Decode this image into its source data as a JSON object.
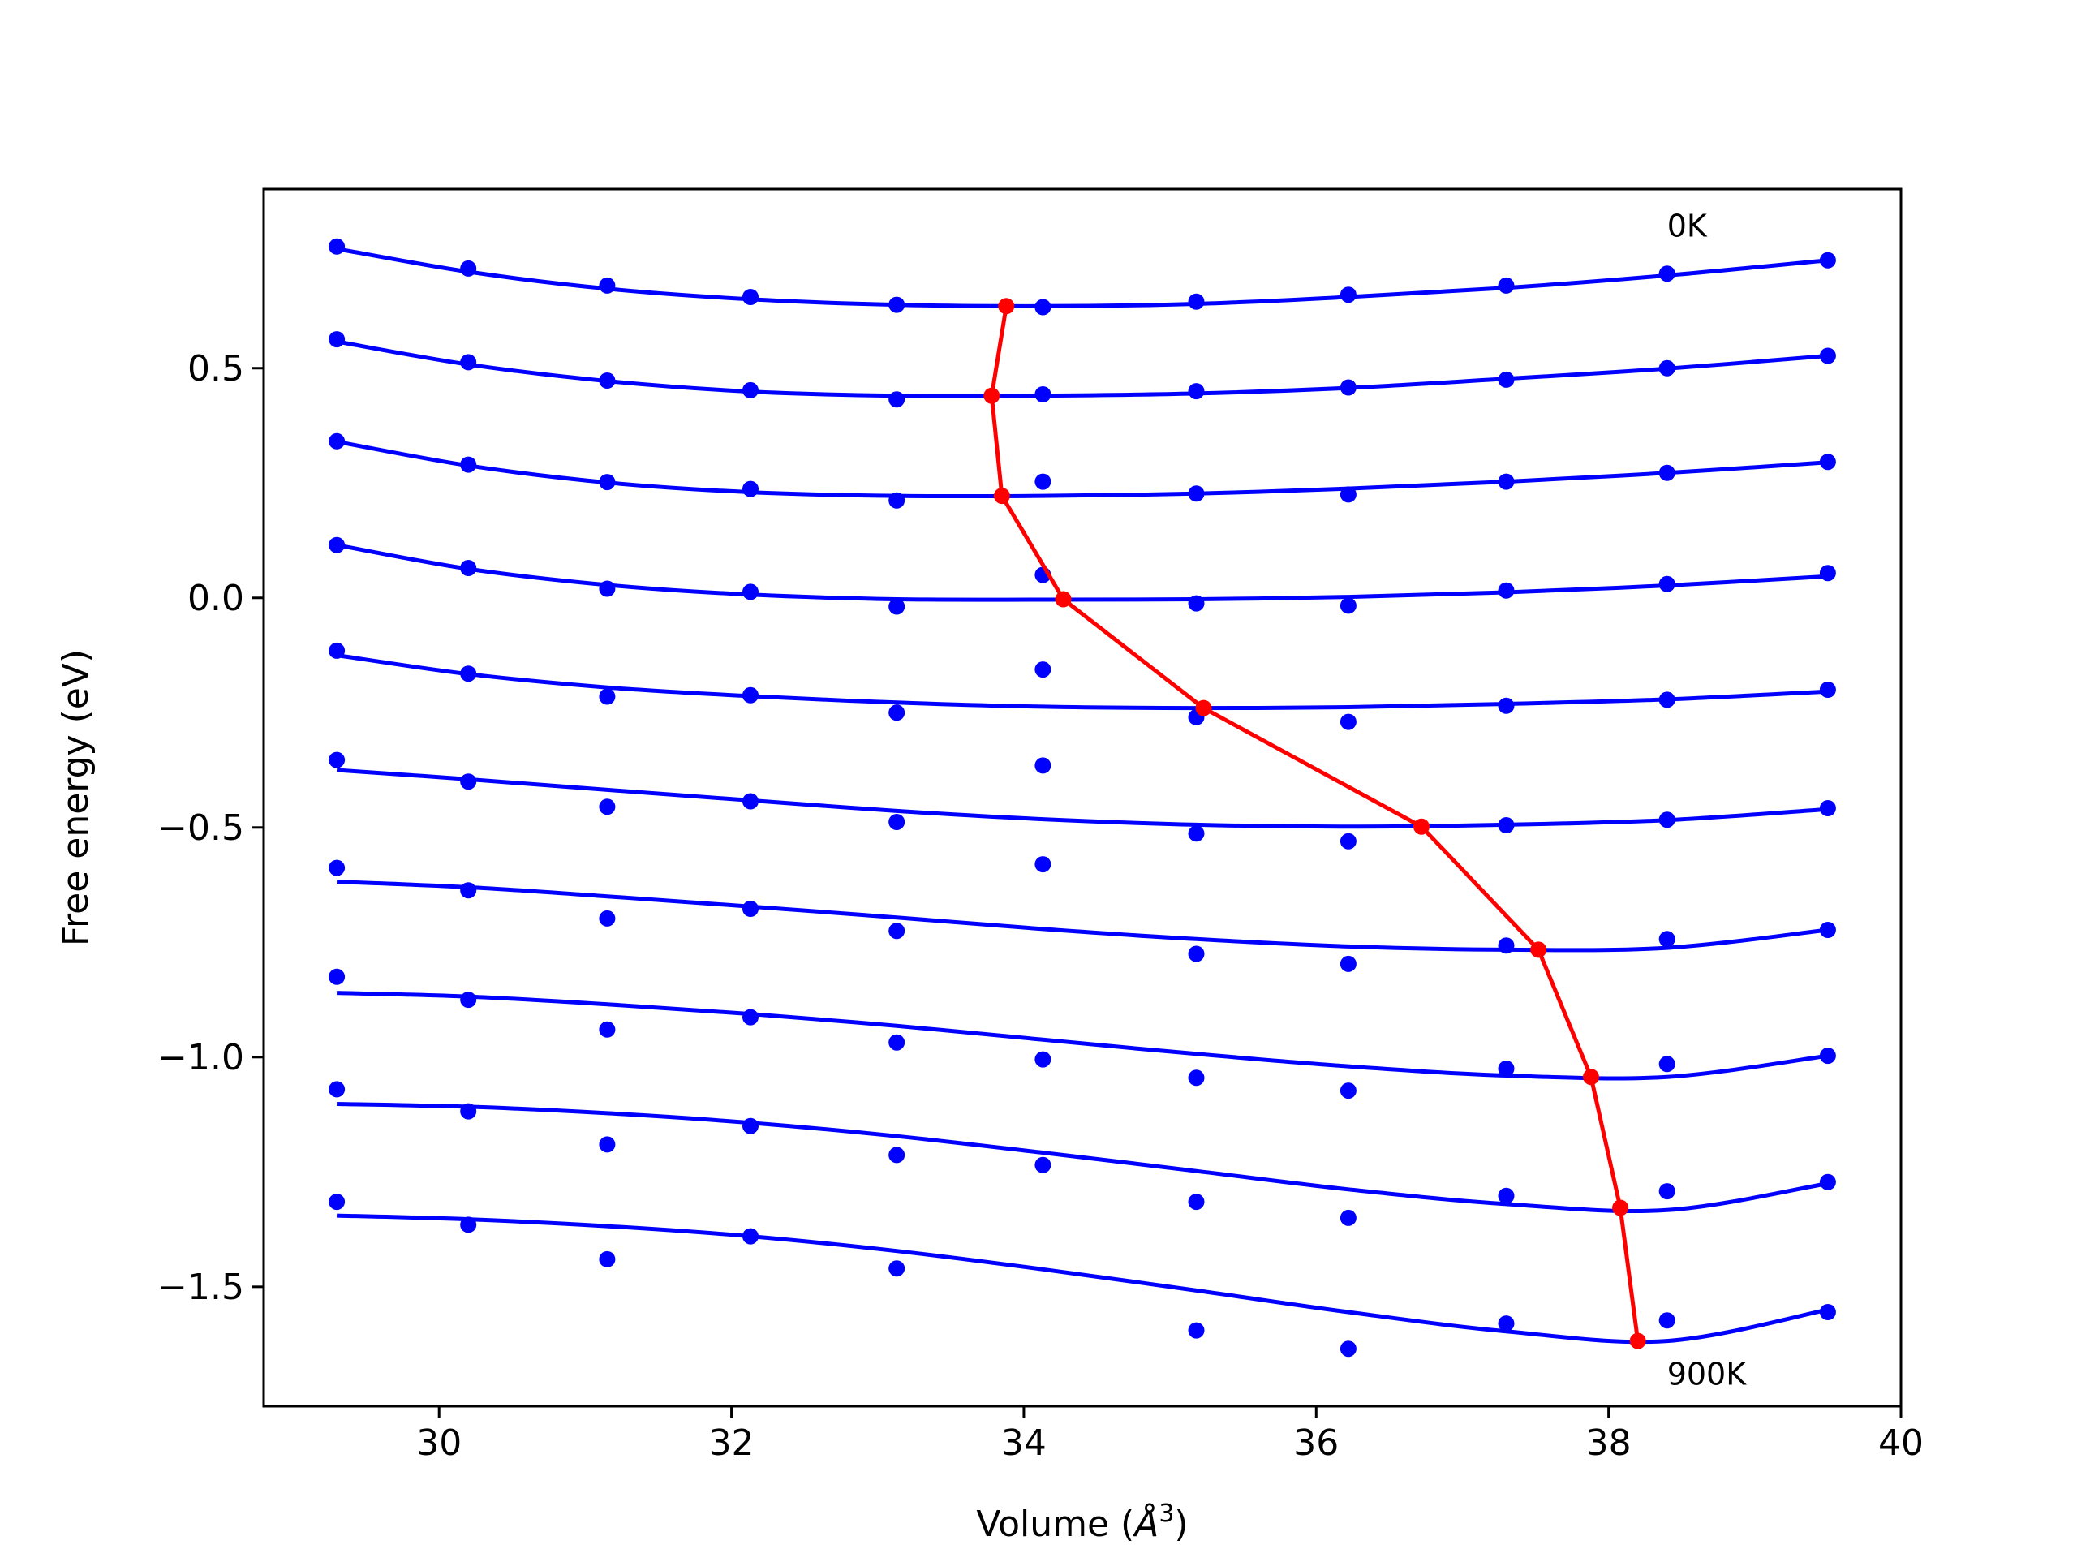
{
  "chart_data": {
    "type": "line",
    "title": "",
    "xlabel": "Volume (",
    "xlabel_symbol": "Å",
    "xlabel_exponent": "3",
    "xlabel_close": ")",
    "ylabel": "Free energy (eV)",
    "xlim": [
      28.8,
      40.0
    ],
    "ylim": [
      -1.76,
      0.89
    ],
    "x_ticks": [
      30,
      32,
      34,
      36,
      38,
      40
    ],
    "x_tick_labels": [
      "30",
      "32",
      "34",
      "36",
      "38",
      "40"
    ],
    "y_ticks": [
      0.5,
      0.0,
      -0.5,
      -1.0,
      -1.5
    ],
    "y_tick_labels": [
      "0.5",
      "0.0",
      "−0.5",
      "−1.0",
      "−1.5"
    ],
    "grid": false,
    "annotations": [
      {
        "text": "0K",
        "x": 38.4,
        "y": 0.81
      },
      {
        "text": "900K",
        "x": 38.4,
        "y": -1.69
      }
    ],
    "colors": {
      "fit_and_points": "#0000ff",
      "equilibrium_path": "#ff0000",
      "axes": "#000000"
    },
    "volumes": [
      29.3,
      30.2,
      31.15,
      32.13,
      33.13,
      34.13,
      35.18,
      36.22,
      37.3,
      38.4,
      39.5
    ],
    "series": [
      {
        "points": [
          0.765,
          0.717,
          0.68,
          0.655,
          0.638,
          0.633,
          0.645,
          0.66,
          0.68,
          0.706,
          0.735
        ],
        "fit": [
          0.76,
          0.71,
          0.673,
          0.65,
          0.638,
          0.635,
          0.64,
          0.655,
          0.675,
          0.702,
          0.735
        ]
      },
      {
        "points": [
          0.563,
          0.513,
          0.473,
          0.452,
          0.432,
          0.443,
          0.45,
          0.458,
          0.475,
          0.5,
          0.527
        ],
        "fit": [
          0.558,
          0.508,
          0.472,
          0.449,
          0.44,
          0.44,
          0.445,
          0.457,
          0.477,
          0.499,
          0.527
        ]
      },
      {
        "points": [
          0.341,
          0.29,
          0.252,
          0.237,
          0.212,
          0.253,
          0.227,
          0.225,
          0.253,
          0.272,
          0.296
        ],
        "fit": [
          0.34,
          0.288,
          0.251,
          0.23,
          0.222,
          0.222,
          0.227,
          0.238,
          0.253,
          0.272,
          0.295
        ]
      },
      {
        "points": [
          0.115,
          0.065,
          0.02,
          0.013,
          -0.019,
          0.05,
          -0.012,
          -0.017,
          0.016,
          0.03,
          0.054
        ],
        "fit": [
          0.115,
          0.063,
          0.028,
          0.007,
          -0.003,
          -0.004,
          -0.003,
          0.002,
          0.012,
          0.027,
          0.047
        ]
      },
      {
        "points": [
          -0.115,
          -0.165,
          -0.215,
          -0.212,
          -0.25,
          -0.156,
          -0.26,
          -0.27,
          -0.235,
          -0.222,
          -0.2
        ],
        "fit": [
          -0.125,
          -0.166,
          -0.195,
          -0.214,
          -0.228,
          -0.237,
          -0.24,
          -0.238,
          -0.231,
          -0.221,
          -0.204
        ]
      },
      {
        "points": [
          -0.353,
          -0.4,
          -0.455,
          -0.443,
          -0.488,
          -0.365,
          -0.513,
          -0.53,
          -0.495,
          -0.483,
          -0.458
        ],
        "fit": [
          -0.375,
          -0.395,
          -0.418,
          -0.441,
          -0.464,
          -0.482,
          -0.494,
          -0.498,
          -0.494,
          -0.484,
          -0.46
        ]
      },
      {
        "points": [
          -0.588,
          -0.637,
          -0.698,
          -0.677,
          -0.725,
          -0.58,
          -0.775,
          -0.797,
          -0.757,
          -0.743,
          -0.723
        ],
        "fit": [
          -0.618,
          -0.63,
          -0.65,
          -0.672,
          -0.696,
          -0.721,
          -0.743,
          -0.759,
          -0.766,
          -0.762,
          -0.723
        ]
      },
      {
        "points": [
          -0.825,
          -0.875,
          -0.94,
          -0.913,
          -0.968,
          -1.005,
          -1.045,
          -1.073,
          -1.025,
          -1.015,
          -0.997
        ],
        "fit": [
          -0.86,
          -0.868,
          -0.885,
          -0.906,
          -0.932,
          -0.962,
          -0.993,
          -1.02,
          -1.04,
          -1.043,
          -0.997
        ]
      },
      {
        "points": [
          -1.07,
          -1.118,
          -1.19,
          -1.15,
          -1.213,
          -1.235,
          -1.315,
          -1.35,
          -1.302,
          -1.292,
          -1.272
        ],
        "fit": [
          -1.102,
          -1.108,
          -1.122,
          -1.143,
          -1.172,
          -1.208,
          -1.248,
          -1.288,
          -1.32,
          -1.333,
          -1.275
        ]
      },
      {
        "points": [
          -1.315,
          -1.365,
          -1.44,
          -1.39,
          -1.46,
          null,
          -1.595,
          -1.635,
          -1.58,
          -1.573,
          -1.555
        ],
        "fit": [
          -1.345,
          -1.353,
          -1.368,
          -1.39,
          -1.422,
          -1.462,
          -1.508,
          -1.555,
          -1.597,
          -1.618,
          -1.55
        ]
      }
    ],
    "equilibrium_path": {
      "x": [
        33.88,
        33.78,
        33.85,
        34.27,
        35.23,
        36.72,
        37.52,
        37.88,
        38.08,
        38.2
      ],
      "y": [
        0.635,
        0.44,
        0.222,
        -0.003,
        -0.24,
        -0.498,
        -0.766,
        -1.043,
        -1.328,
        -1.618
      ]
    }
  }
}
